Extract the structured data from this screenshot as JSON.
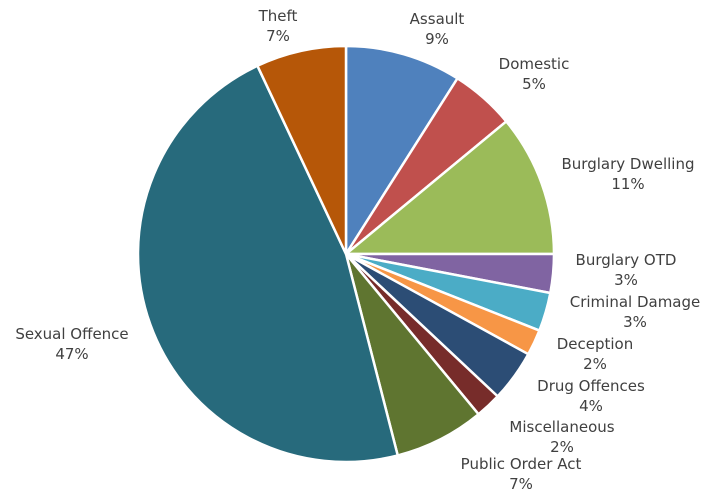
{
  "chart_data": {
    "type": "pie",
    "title": "",
    "start_angle_deg": 0,
    "direction": "clockwise",
    "slices": [
      {
        "label": "Assault",
        "value": 9,
        "display": "9%",
        "color": "#4F81BD"
      },
      {
        "label": "Domestic",
        "value": 5,
        "display": "5%",
        "color": "#C0504D"
      },
      {
        "label": "Burglary Dwelling",
        "value": 11,
        "display": "11%",
        "color": "#9BBB59"
      },
      {
        "label": "Burglary OTD",
        "value": 3,
        "display": "3%",
        "color": "#8064A2"
      },
      {
        "label": "Criminal Damage",
        "value": 3,
        "display": "3%",
        "color": "#4BACC6"
      },
      {
        "label": "Deception",
        "value": 2,
        "display": "2%",
        "color": "#F79646"
      },
      {
        "label": "Drug Offences",
        "value": 4,
        "display": "4%",
        "color": "#2C4D75"
      },
      {
        "label": "Miscellaneous",
        "value": 2,
        "display": "2%",
        "color": "#772C2A"
      },
      {
        "label": "Public Order Act",
        "value": 7,
        "display": "7%",
        "color": "#5F7530"
      },
      {
        "label": "Sexual Offence",
        "value": 47,
        "display": "47%",
        "color": "#276A7C"
      },
      {
        "label": "Theft",
        "value": 7,
        "display": "7%",
        "color": "#B65708"
      }
    ]
  }
}
